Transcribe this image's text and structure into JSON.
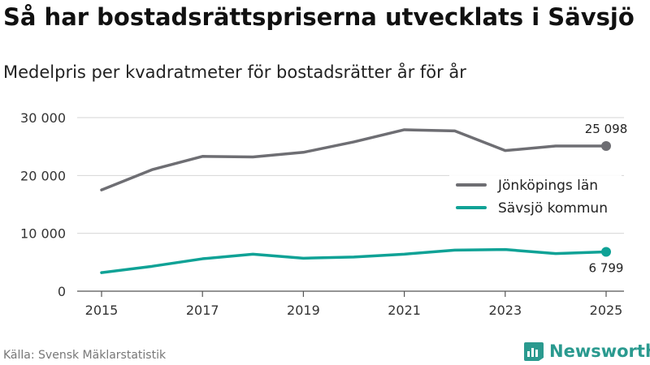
{
  "header": {
    "title": "Så har bostadsrättspriserna utvecklats i Sävsjö",
    "subtitle": "Medelpris per kvadratmeter för bostadsrätter år för år"
  },
  "footer": {
    "source": "Källa: Svensk Mäklarstatistik",
    "brand": "Newsworthy"
  },
  "colors": {
    "jonkoping": "#6e6e73",
    "savsjo": "#0fa296",
    "grid": "#d6d6d6",
    "axis": "#555555",
    "brand": "#2a9a8f"
  },
  "chart_data": {
    "type": "line",
    "title": "Så har bostadsrättspriserna utvecklats i Sävsjö",
    "subtitle": "Medelpris per kvadratmeter för bostadsrätter år för år",
    "xlabel": "",
    "ylabel": "",
    "x": [
      2015,
      2016,
      2017,
      2018,
      2019,
      2020,
      2021,
      2022,
      2023,
      2024,
      2025
    ],
    "xlim": [
      2015,
      2025
    ],
    "ylim": [
      0,
      30000
    ],
    "x_ticks": [
      2015,
      2017,
      2019,
      2021,
      2023,
      2025
    ],
    "x_tick_labels": [
      "2015",
      "2017",
      "2019",
      "2021",
      "2023",
      "2025"
    ],
    "y_ticks": [
      0,
      10000,
      20000,
      30000
    ],
    "y_tick_labels": [
      "0",
      "10 000",
      "20 000",
      "30 000"
    ],
    "grid": true,
    "legend_position": "right",
    "series": [
      {
        "name": "Jönköpings län",
        "color": "#6e6e73",
        "values": [
          17500,
          21000,
          23300,
          23200,
          24000,
          25800,
          27900,
          27700,
          24300,
          25100,
          25098
        ],
        "end_label": "25 098",
        "end_label_position": "above"
      },
      {
        "name": "Sävsjö kommun",
        "color": "#0fa296",
        "values": [
          3200,
          4300,
          5600,
          6400,
          5700,
          5900,
          6400,
          7100,
          7200,
          6500,
          6799
        ],
        "end_label": "6 799",
        "end_label_position": "below"
      }
    ]
  }
}
